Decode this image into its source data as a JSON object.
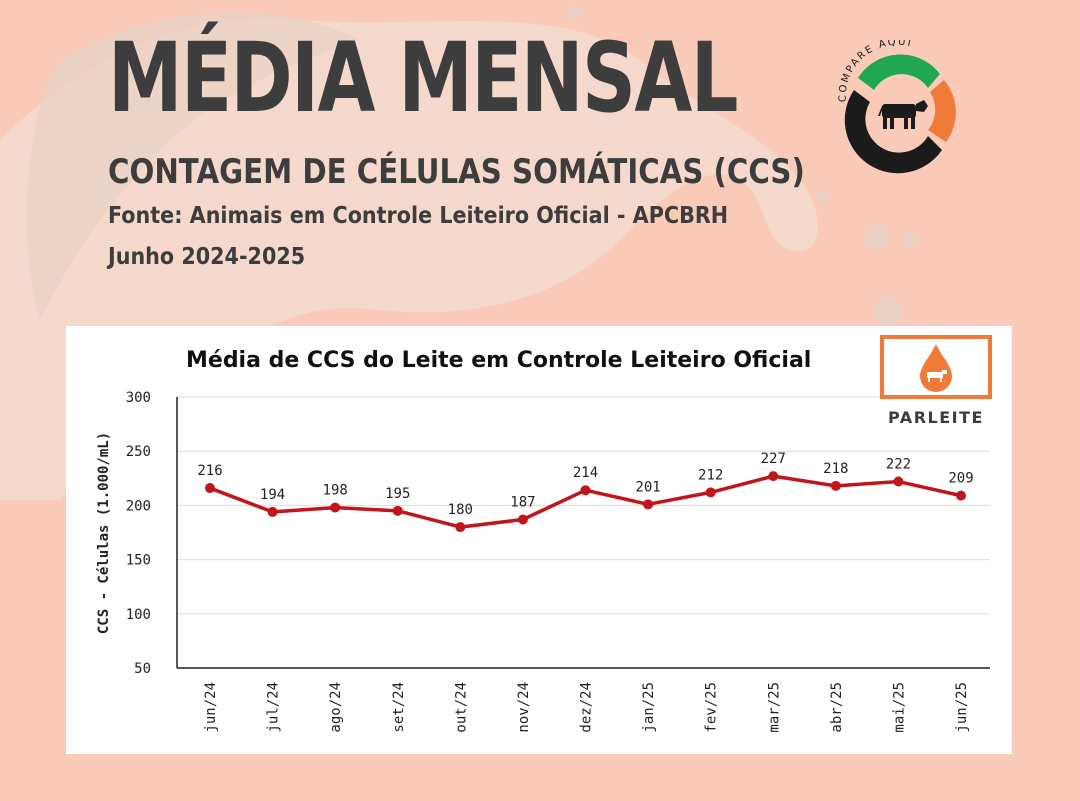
{
  "header": {
    "headline": "MÉDIA MENSAL",
    "subheadline": "CONTAGEM DE CÉLULAS SOMÁTICAS (CCS)",
    "source": "Fonte: Animais em Controle Leiteiro Oficial - APCBRH",
    "period": "Junho 2024-2025"
  },
  "logos": {
    "compare": {
      "text": "COMPARE AQUI",
      "icon": "cow-icon"
    },
    "parleite": {
      "text": "PARLEITE",
      "icon": "milk-drop-cow-icon"
    }
  },
  "colors": {
    "background": "#f9cbb8",
    "text": "#3d3d3d",
    "line": "#c0151d",
    "logo_green": "#1fa84f",
    "logo_orange": "#f07a38",
    "logo_black": "#1b1b1b"
  },
  "chart_data": {
    "type": "line",
    "title": "Média de CCS do Leite em Controle Leiteiro Oficial",
    "xlabel": "",
    "ylabel": "CCS - Células (1.000/mL)",
    "categories": [
      "jun/24",
      "jul/24",
      "ago/24",
      "set/24",
      "out/24",
      "nov/24",
      "dez/24",
      "jan/25",
      "fev/25",
      "mar/25",
      "abr/25",
      "mai/25",
      "jun/25"
    ],
    "series": [
      {
        "values": [
          216,
          194,
          198,
          195,
          180,
          187,
          214,
          201,
          212,
          227,
          218,
          222,
          209
        ]
      }
    ],
    "ylim": [
      50,
      300
    ],
    "yticks": [
      50,
      100,
      150,
      200,
      250,
      300
    ],
    "grid": true,
    "data_labels": true
  }
}
